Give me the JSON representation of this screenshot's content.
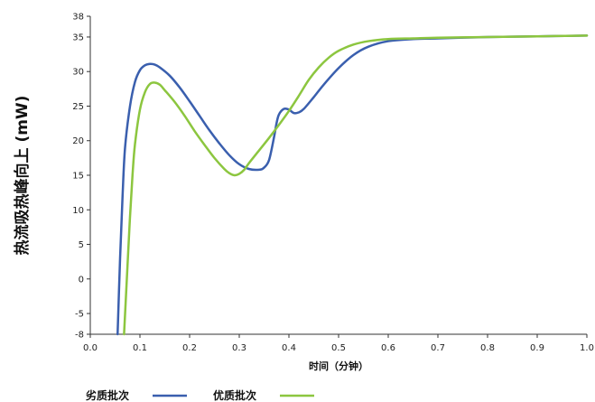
{
  "chart_data": {
    "type": "line",
    "title": "",
    "xlabel": "时间（分钟）",
    "ylabel": "热流吸热峰向上 (mW)",
    "xlim": [
      0.0,
      1.0
    ],
    "ylim": [
      -8,
      38
    ],
    "x_ticks": [
      "0.0",
      "0.1",
      "0.2",
      "0.3",
      "0.4",
      "0.5",
      "0.6",
      "0.7",
      "0.8",
      "0.9",
      "1.0"
    ],
    "y_ticks": [
      "-8",
      "-5",
      "0",
      "5",
      "10",
      "15",
      "20",
      "25",
      "30",
      "35",
      "38"
    ],
    "grid": false,
    "legend_position": "bottom-left",
    "series": [
      {
        "name": "劣质批次",
        "color": "#3a5fae",
        "x": [
          0.055,
          0.06,
          0.065,
          0.07,
          0.08,
          0.09,
          0.1,
          0.11,
          0.12,
          0.13,
          0.14,
          0.16,
          0.18,
          0.2,
          0.22,
          0.24,
          0.26,
          0.28,
          0.3,
          0.32,
          0.34,
          0.35,
          0.36,
          0.37,
          0.375,
          0.38,
          0.39,
          0.4,
          0.41,
          0.42,
          0.43,
          0.45,
          0.47,
          0.5,
          0.53,
          0.56,
          0.6,
          0.65,
          0.7,
          0.8,
          0.9,
          1.0
        ],
        "y": [
          -8,
          3,
          12,
          19,
          25,
          28.5,
          30.2,
          30.9,
          31.1,
          31,
          30.6,
          29.4,
          27.7,
          25.7,
          23.6,
          21.5,
          19.6,
          17.9,
          16.6,
          15.9,
          15.8,
          16.1,
          17.2,
          20.5,
          22.5,
          23.8,
          24.6,
          24.5,
          24,
          24.1,
          24.6,
          26.3,
          28.1,
          30.5,
          32.4,
          33.6,
          34.4,
          34.7,
          34.8,
          35,
          35.1,
          35.2
        ]
      },
      {
        "name": "优质批次",
        "color": "#8cc63f",
        "x": [
          0.068,
          0.075,
          0.08,
          0.085,
          0.09,
          0.1,
          0.11,
          0.12,
          0.13,
          0.14,
          0.15,
          0.17,
          0.19,
          0.21,
          0.23,
          0.25,
          0.27,
          0.28,
          0.29,
          0.3,
          0.31,
          0.32,
          0.34,
          0.36,
          0.38,
          0.4,
          0.42,
          0.44,
          0.46,
          0.48,
          0.5,
          0.53,
          0.56,
          0.6,
          0.65,
          0.7,
          0.8,
          0.9,
          1.0
        ],
        "y": [
          -8,
          2,
          9,
          15,
          19.5,
          24.5,
          27,
          28.2,
          28.4,
          28.1,
          27.3,
          25.6,
          23.6,
          21.4,
          19.4,
          17.5,
          15.9,
          15.3,
          15.0,
          15.2,
          15.8,
          16.8,
          18.6,
          20.4,
          22.3,
          24.3,
          26.5,
          28.8,
          30.6,
          32.0,
          33.0,
          33.9,
          34.4,
          34.7,
          34.8,
          34.9,
          35,
          35.1,
          35.2
        ]
      }
    ]
  }
}
